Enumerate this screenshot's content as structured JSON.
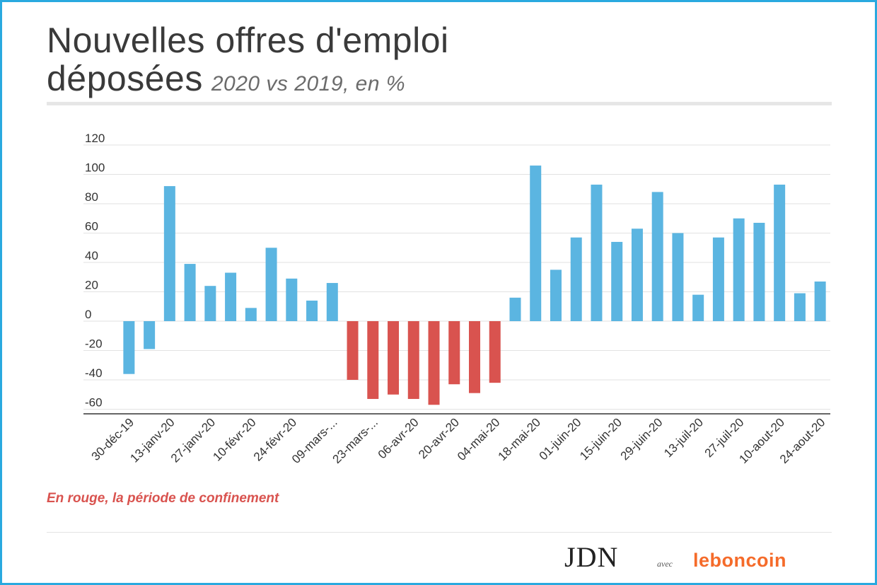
{
  "header": {
    "title": "Nouvelles offres d'emploi",
    "title_line2": "déposées",
    "subtitle": "2020 vs 2019, en %"
  },
  "note": "En rouge, la période de confinement",
  "logos": {
    "jdn": "JDN",
    "avec": "avec",
    "leboncoin": "leboncoin"
  },
  "colors": {
    "positive": "#5bb5e1",
    "confinement": "#d9534f",
    "frame": "#29a9df"
  },
  "chart_data": {
    "type": "bar",
    "ylim": [
      -60,
      120
    ],
    "yticks": [
      -60,
      -40,
      -20,
      0,
      20,
      40,
      60,
      80,
      100,
      120
    ],
    "grid": true,
    "tick_labels": [
      "30-déc-19",
      "13-janv-20",
      "27-janv-20",
      "10-févr-20",
      "24-févr-20",
      "09-mars-...",
      "23-mars-...",
      "06-avr-20",
      "20-avr-20",
      "04-mai-20",
      "18-mai-20",
      "01-juin-20",
      "15-juin-20",
      "29-juin-20",
      "13-juil-20",
      "27-juil-20",
      "10-aout-20",
      "24-aout-20"
    ],
    "values": [
      -36,
      -19,
      92,
      39,
      24,
      33,
      9,
      50,
      29,
      14,
      26,
      -40,
      -53,
      -50,
      -53,
      -57,
      -43,
      -49,
      -42,
      16,
      106,
      35,
      57,
      93,
      54,
      63,
      88,
      60,
      18,
      57,
      70,
      67,
      93,
      19,
      27
    ],
    "confinement": [
      false,
      false,
      false,
      false,
      false,
      false,
      false,
      false,
      false,
      false,
      false,
      true,
      true,
      true,
      true,
      true,
      true,
      true,
      true,
      false,
      false,
      false,
      false,
      false,
      false,
      false,
      false,
      false,
      false,
      false,
      false,
      false,
      false,
      false,
      false
    ]
  }
}
